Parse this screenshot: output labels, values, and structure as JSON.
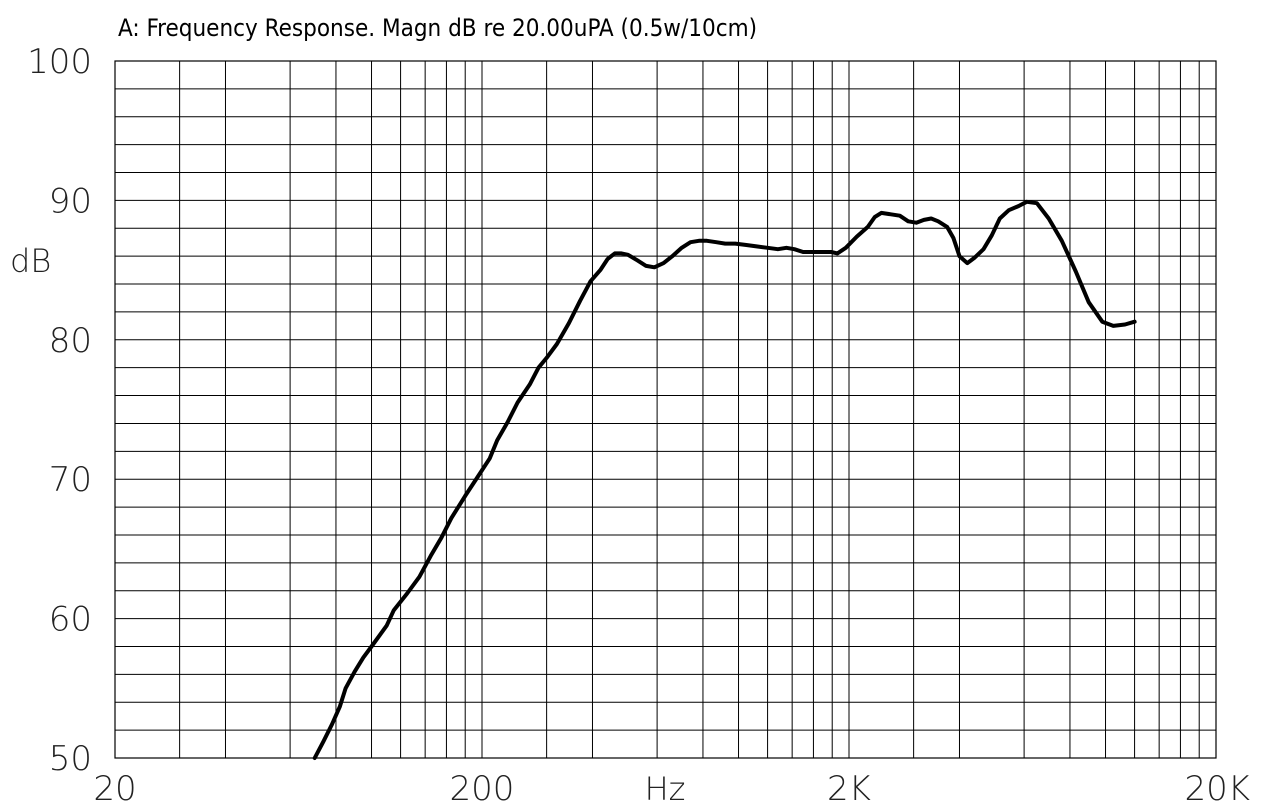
{
  "chart_data": {
    "type": "line",
    "title": "A: Frequency Response. Magn dB re 20.00uPA (0.5w/10cm)",
    "xlabel": "Hz",
    "ylabel": "dB",
    "x_scale": "log",
    "xlim": [
      20,
      20000
    ],
    "ylim": [
      50,
      100
    ],
    "x_ticks": [
      {
        "value": 20,
        "label": "20"
      },
      {
        "value": 200,
        "label": "200"
      },
      {
        "value": 2000,
        "label": "2K"
      },
      {
        "value": 20000,
        "label": "20K"
      }
    ],
    "y_ticks": [
      {
        "value": 100,
        "label": "100"
      },
      {
        "value": 90,
        "label": "90"
      },
      {
        "value": 80,
        "label": "80"
      },
      {
        "value": 70,
        "label": "70"
      },
      {
        "value": 60,
        "label": "60"
      },
      {
        "value": 50,
        "label": "50"
      }
    ],
    "grid": true,
    "line_color": "#000000",
    "series": [
      {
        "values": [
          [
            70,
            50.0
          ],
          [
            74,
            51.2
          ],
          [
            78,
            52.4
          ],
          [
            82,
            53.7
          ],
          [
            85,
            55.0
          ],
          [
            90,
            56.2
          ],
          [
            95,
            57.2
          ],
          [
            100,
            58.0
          ],
          [
            110,
            59.5
          ],
          [
            115,
            60.6
          ],
          [
            125,
            61.8
          ],
          [
            135,
            63.0
          ],
          [
            145,
            64.5
          ],
          [
            155,
            65.8
          ],
          [
            165,
            67.2
          ],
          [
            180,
            68.8
          ],
          [
            195,
            70.2
          ],
          [
            210,
            71.5
          ],
          [
            220,
            72.8
          ],
          [
            235,
            74.1
          ],
          [
            250,
            75.5
          ],
          [
            270,
            76.8
          ],
          [
            285,
            78.0
          ],
          [
            300,
            78.7
          ],
          [
            320,
            79.7
          ],
          [
            345,
            81.2
          ],
          [
            370,
            82.8
          ],
          [
            395,
            84.2
          ],
          [
            420,
            85.0
          ],
          [
            440,
            85.8
          ],
          [
            460,
            86.2
          ],
          [
            480,
            86.2
          ],
          [
            500,
            86.1
          ],
          [
            530,
            85.7
          ],
          [
            560,
            85.3
          ],
          [
            590,
            85.2
          ],
          [
            625,
            85.5
          ],
          [
            660,
            86.0
          ],
          [
            700,
            86.6
          ],
          [
            740,
            87.0
          ],
          [
            780,
            87.1
          ],
          [
            820,
            87.1
          ],
          [
            870,
            87.0
          ],
          [
            920,
            86.9
          ],
          [
            980,
            86.9
          ],
          [
            1050,
            86.8
          ],
          [
            1120,
            86.7
          ],
          [
            1200,
            86.6
          ],
          [
            1280,
            86.5
          ],
          [
            1350,
            86.6
          ],
          [
            1420,
            86.5
          ],
          [
            1500,
            86.3
          ],
          [
            1580,
            86.3
          ],
          [
            1650,
            86.3
          ],
          [
            1720,
            86.3
          ],
          [
            1790,
            86.3
          ],
          [
            1860,
            86.2
          ],
          [
            1960,
            86.6
          ],
          [
            2100,
            87.4
          ],
          [
            2250,
            88.1
          ],
          [
            2350,
            88.8
          ],
          [
            2450,
            89.1
          ],
          [
            2600,
            89.0
          ],
          [
            2750,
            88.9
          ],
          [
            2900,
            88.5
          ],
          [
            3050,
            88.4
          ],
          [
            3200,
            88.6
          ],
          [
            3350,
            88.7
          ],
          [
            3500,
            88.5
          ],
          [
            3700,
            88.1
          ],
          [
            3850,
            87.3
          ],
          [
            4000,
            86.0
          ],
          [
            4200,
            85.5
          ],
          [
            4400,
            85.9
          ],
          [
            4650,
            86.5
          ],
          [
            4900,
            87.5
          ],
          [
            5150,
            88.7
          ],
          [
            5450,
            89.3
          ],
          [
            5800,
            89.6
          ],
          [
            6100,
            89.9
          ],
          [
            6500,
            89.8
          ],
          [
            7000,
            88.7
          ],
          [
            7600,
            87.1
          ],
          [
            8300,
            84.9
          ],
          [
            9000,
            82.7
          ],
          [
            9800,
            81.3
          ],
          [
            10500,
            81.0
          ],
          [
            11300,
            81.1
          ],
          [
            12000,
            81.3
          ]
        ]
      }
    ]
  }
}
